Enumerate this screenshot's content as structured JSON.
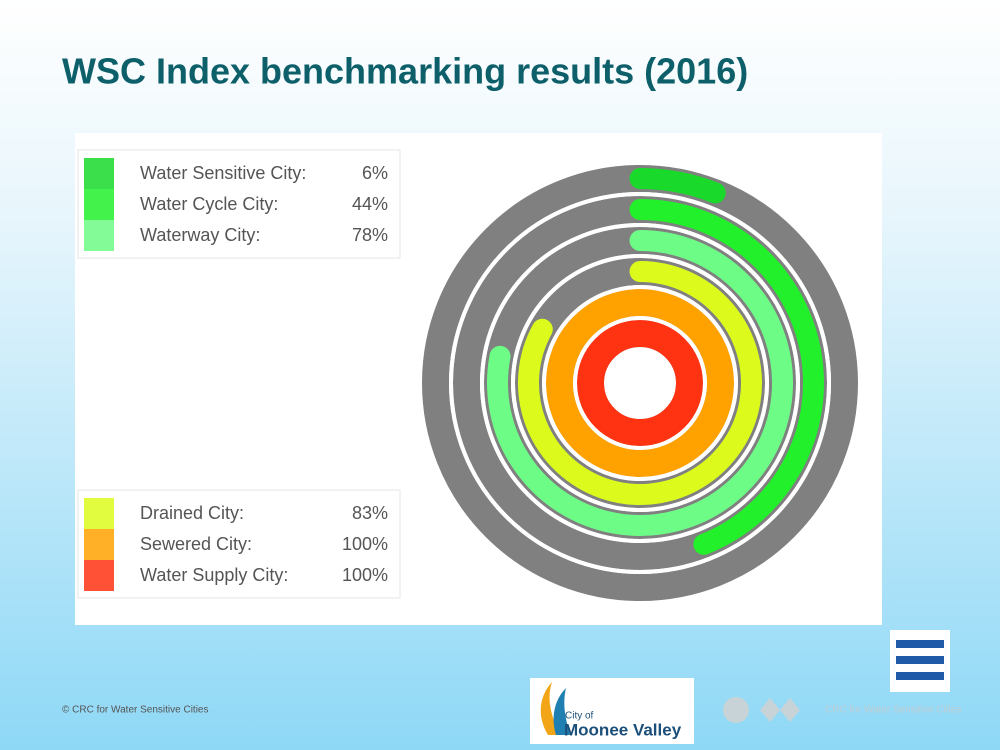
{
  "chart_data": {
    "type": "radial-bar",
    "title": "WSC Index benchmarking results (2016)",
    "categories": [
      "Water Sensitive City:",
      "Water Cycle City:",
      "Waterway City:",
      "Drained City:",
      "Sewered City:",
      "Water Supply City:"
    ],
    "series": [
      {
        "values": [
          6,
          44,
          78,
          83,
          100,
          100
        ],
        "value_labels": [
          "6%",
          "44%",
          "78%",
          "83%",
          "100%",
          "100%"
        ],
        "colors": [
          "#19d92b",
          "#22f02a",
          "#6dfc86",
          "#dcfb1c",
          "#ffa200",
          "#ff3212"
        ]
      }
    ],
    "ylim": [
      0,
      100
    ]
  },
  "footer": {
    "copyright": "© CRC for Water Sensitive Cities",
    "logo_small": "City of",
    "logo_big": "Moonee Valley",
    "logo_faint": "CRC for Water Sensitive Cities"
  }
}
